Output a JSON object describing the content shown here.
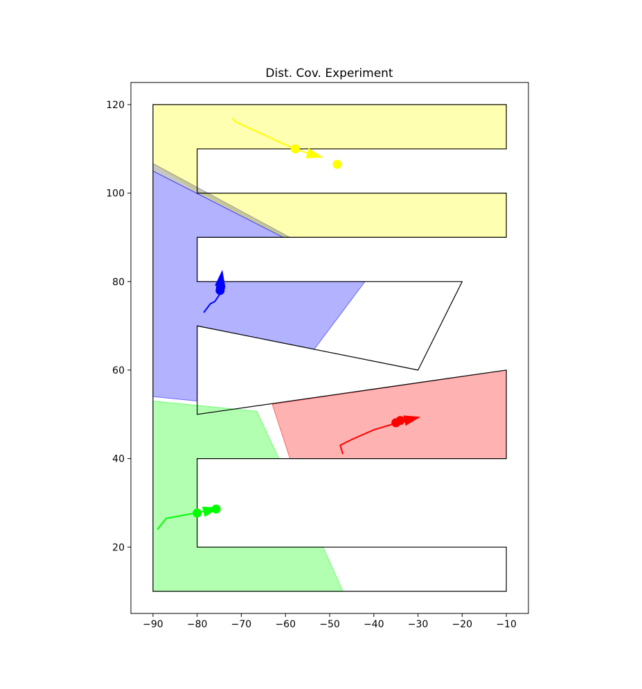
{
  "chart_data": {
    "type": "scatter",
    "title": "Dist. Cov. Experiment",
    "xlabel": "",
    "ylabel": "",
    "xlim": [
      -95,
      -5
    ],
    "ylim": [
      5,
      125
    ],
    "xticks": [
      -90,
      -80,
      -70,
      -60,
      -50,
      -40,
      -30,
      -20,
      -10
    ],
    "yticks": [
      20,
      40,
      60,
      80,
      100,
      120
    ],
    "xtick_labels": [
      "−90",
      "−80",
      "−70",
      "−60",
      "−50",
      "−40",
      "−30",
      "−20",
      "−10"
    ],
    "ytick_labels": [
      "20",
      "40",
      "60",
      "80",
      "100",
      "120"
    ],
    "grid": false,
    "environment_outline": [
      [
        -90,
        120
      ],
      [
        -10,
        120
      ],
      [
        -10,
        110
      ],
      [
        -80,
        110
      ],
      [
        -80,
        100
      ],
      [
        -10,
        100
      ],
      [
        -10,
        90
      ],
      [
        -80,
        90
      ],
      [
        -80,
        80
      ],
      [
        -20,
        80
      ],
      [
        -30,
        60
      ],
      [
        -80,
        70
      ],
      [
        -80,
        50
      ],
      [
        -10,
        60
      ],
      [
        -10,
        40
      ],
      [
        -80,
        40
      ],
      [
        -80,
        20
      ],
      [
        -10,
        20
      ],
      [
        -10,
        10
      ],
      [
        -90,
        10
      ]
    ],
    "regions": [
      {
        "color": "#ffff00",
        "alpha": 0.3,
        "polygon": [
          [
            -90,
            120
          ],
          [
            -10,
            120
          ],
          [
            -10,
            110
          ],
          [
            -80,
            110
          ],
          [
            -80,
            100
          ],
          [
            -10,
            100
          ],
          [
            -10,
            90
          ],
          [
            -60,
            90
          ],
          [
            -80,
            100.5
          ],
          [
            -90,
            106.7
          ]
        ]
      },
      {
        "color": "#808080",
        "alpha": 0.45,
        "polygon": [
          [
            -90,
            106.7
          ],
          [
            -59,
            90
          ],
          [
            -60.5,
            90
          ],
          [
            -90,
            105
          ]
        ]
      },
      {
        "color": "#0000ff",
        "alpha": 0.3,
        "polygon": [
          [
            -90,
            105
          ],
          [
            -60.5,
            90
          ],
          [
            -80,
            90
          ],
          [
            -80,
            80
          ],
          [
            -42,
            80
          ],
          [
            -53.5,
            64.7
          ],
          [
            -80,
            70
          ],
          [
            -80,
            53
          ],
          [
            -90,
            54
          ]
        ]
      },
      {
        "color": "#ff0000",
        "alpha": 0.3,
        "polygon": [
          [
            -63,
            52.3
          ],
          [
            -10,
            60
          ],
          [
            -10,
            40
          ],
          [
            -59,
            40
          ]
        ]
      },
      {
        "color": "#00ff00",
        "alpha": 0.3,
        "polygon": [
          [
            -90,
            53
          ],
          [
            -66.5,
            50.7
          ],
          [
            -61.5,
            40
          ],
          [
            -80,
            40
          ],
          [
            -80,
            20
          ],
          [
            -51.5,
            20
          ],
          [
            -47,
            10
          ],
          [
            -90,
            10
          ]
        ]
      }
    ],
    "series": [
      {
        "color": "#ffff00",
        "trail": [
          [
            -72,
            117
          ],
          [
            -71.5,
            116.2
          ],
          [
            -58,
            110
          ],
          [
            -53.5,
            108.6
          ]
        ],
        "agent": [
          -57.8,
          110
        ],
        "arrow": {
          "from": [
            -55,
            109
          ],
          "to": [
            -52,
            108.2
          ]
        },
        "target": [
          -48.3,
          106.5
        ]
      },
      {
        "color": "#0000ff",
        "trail": [
          [
            -78.5,
            73
          ],
          [
            -77,
            75
          ],
          [
            -76,
            75.5
          ],
          [
            -75,
            77
          ],
          [
            -74.8,
            79.5
          ]
        ],
        "agent": [
          -74.8,
          78
        ],
        "arrow": {
          "from": [
            -74.8,
            79
          ],
          "to": [
            -74.3,
            82.5
          ]
        },
        "target": [
          -74.7,
          78.7
        ]
      },
      {
        "color": "#ff0000",
        "trail": [
          [
            -47,
            41
          ],
          [
            -47.6,
            43
          ],
          [
            -45,
            44.3
          ],
          [
            -40,
            46.5
          ],
          [
            -35,
            48
          ],
          [
            -33,
            48.8
          ]
        ],
        "agent": [
          -35,
          48.1
        ],
        "arrow": {
          "from": [
            -33,
            48.6
          ],
          "to": [
            -30,
            49.3
          ]
        },
        "target": [
          -34,
          48.6
        ]
      },
      {
        "color": "#00ff00",
        "trail": [
          [
            -89,
            24
          ],
          [
            -87,
            26.5
          ],
          [
            -82,
            27.4
          ],
          [
            -79.5,
            27.8
          ],
          [
            -77.5,
            28.3
          ]
        ],
        "agent": [
          -80,
          27.7
        ],
        "arrow": {
          "from": [
            -78.5,
            28
          ],
          "to": [
            -76.5,
            28.5
          ]
        },
        "target": [
          -75.7,
          28.6
        ]
      }
    ]
  }
}
